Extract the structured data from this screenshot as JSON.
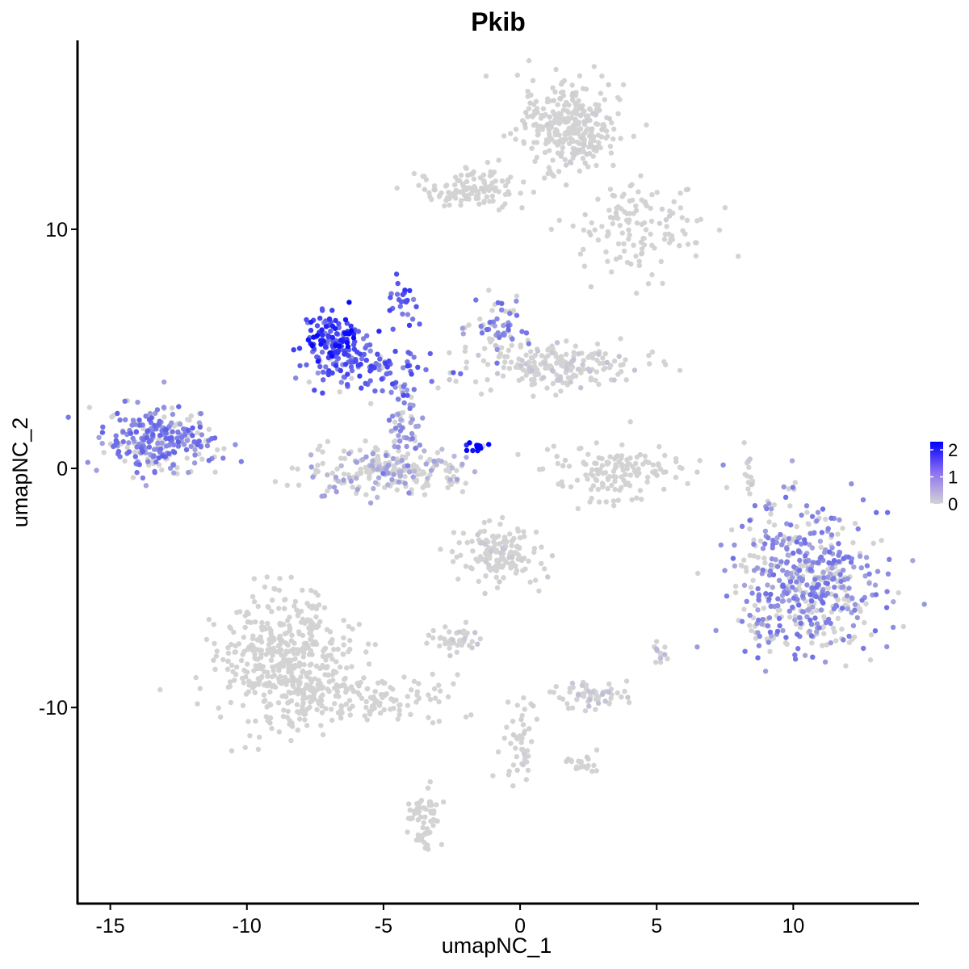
{
  "chart_data": {
    "type": "scatter",
    "title": "Pkib",
    "xlabel": "umapNC_1",
    "ylabel": "umapNC_2",
    "xlim": [
      -16.2,
      14.6
    ],
    "ylim": [
      -18.2,
      17.9
    ],
    "x_ticks": [
      -15,
      -10,
      -5,
      0,
      5,
      10
    ],
    "x_tick_labels": [
      "-15",
      "-10",
      "-5",
      "0",
      "5",
      "10"
    ],
    "y_ticks": [
      -10,
      0,
      10
    ],
    "y_tick_labels": [
      "-10",
      "0",
      "10"
    ],
    "grid": false,
    "legend_position": "right",
    "color_scale": {
      "low": "#d3d3d3",
      "high": "#0000ff",
      "min": 0,
      "max": 2.3
    },
    "legend_ticks": [
      0,
      1,
      2
    ],
    "legend_labels": [
      "0",
      "1",
      "2"
    ],
    "clusters": [
      {
        "cx": -13.2,
        "cy": 1.2,
        "sx": 1.0,
        "sy": 0.75,
        "n": 260,
        "expr": 0.85
      },
      {
        "cx": -6.9,
        "cy": 5.3,
        "sx": 0.55,
        "sy": 0.55,
        "n": 140,
        "expr": 1.5
      },
      {
        "cx": -5.5,
        "cy": 4.1,
        "sx": 1.2,
        "sy": 0.5,
        "n": 100,
        "expr": 1.1
      },
      {
        "cx": -5.0,
        "cy": -0.1,
        "sx": 1.4,
        "sy": 0.55,
        "n": 220,
        "expr": 0.4
      },
      {
        "cx": -4.3,
        "cy": 1.8,
        "sx": 0.35,
        "sy": 1.0,
        "n": 60,
        "expr": 0.7
      },
      {
        "cx": -4.4,
        "cy": 6.8,
        "sx": 0.3,
        "sy": 0.6,
        "n": 25,
        "expr": 1.2
      },
      {
        "cx": -0.8,
        "cy": 5.8,
        "sx": 0.6,
        "sy": 0.6,
        "n": 60,
        "expr": 0.8
      },
      {
        "cx": 1.4,
        "cy": 4.3,
        "sx": 1.5,
        "sy": 0.5,
        "n": 200,
        "expr": 0.12
      },
      {
        "cx": 1.8,
        "cy": 14.3,
        "sx": 0.9,
        "sy": 1.0,
        "n": 300,
        "expr": 0.05
      },
      {
        "cx": -1.8,
        "cy": 11.7,
        "sx": 1.0,
        "sy": 0.4,
        "n": 120,
        "expr": 0.03
      },
      {
        "cx": 4.5,
        "cy": 10.0,
        "sx": 1.2,
        "sy": 0.9,
        "n": 130,
        "expr": 0.04
      },
      {
        "cx": 3.6,
        "cy": -0.2,
        "sx": 1.2,
        "sy": 0.6,
        "n": 140,
        "expr": 0.03
      },
      {
        "cx": 10.5,
        "cy": -4.8,
        "sx": 1.3,
        "sy": 1.55,
        "n": 520,
        "expr": 0.75
      },
      {
        "cx": -0.8,
        "cy": -3.6,
        "sx": 0.7,
        "sy": 0.6,
        "n": 150,
        "expr": 0.08
      },
      {
        "cx": -8.5,
        "cy": -8.2,
        "sx": 1.2,
        "sy": 1.4,
        "n": 480,
        "expr": 0.02
      },
      {
        "cx": -5.5,
        "cy": -9.6,
        "sx": 1.6,
        "sy": 0.45,
        "n": 110,
        "expr": 0.02
      },
      {
        "cx": -3.5,
        "cy": -14.8,
        "sx": 0.35,
        "sy": 0.7,
        "n": 60,
        "expr": 0.02
      },
      {
        "cx": 2.5,
        "cy": -9.5,
        "sx": 0.7,
        "sy": 0.3,
        "n": 60,
        "expr": 0.15
      },
      {
        "cx": -2.5,
        "cy": -7.1,
        "sx": 0.5,
        "sy": 0.3,
        "n": 45,
        "expr": 0.12
      },
      {
        "cx": 0.0,
        "cy": -11.5,
        "sx": 0.3,
        "sy": 0.9,
        "n": 45,
        "expr": 0.05
      },
      {
        "cx": 2.4,
        "cy": -12.4,
        "sx": 0.4,
        "sy": 0.25,
        "n": 20,
        "expr": 0.05
      },
      {
        "cx": 8.4,
        "cy": -0.3,
        "sx": 0.12,
        "sy": 0.5,
        "n": 15,
        "expr": 0.1
      },
      {
        "cx": -1.6,
        "cy": 0.9,
        "sx": 0.18,
        "sy": 0.14,
        "n": 12,
        "expr": 2.2
      },
      {
        "cx": 5.1,
        "cy": -7.6,
        "sx": 0.15,
        "sy": 0.2,
        "n": 12,
        "expr": 0.2
      }
    ]
  }
}
